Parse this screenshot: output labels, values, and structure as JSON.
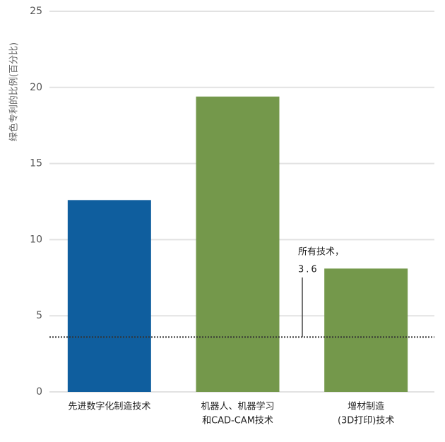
{
  "chart_data": {
    "type": "bar",
    "y_label": "绿色专利的比例(百分比)",
    "categories": [
      [
        "先进数字化制造技术"
      ],
      [
        "机器人、机器学习",
        "和CAD-CAM技术"
      ],
      [
        "增材制造",
        "(3D打印)技术"
      ]
    ],
    "values": [
      12.6,
      19.4,
      8.1
    ],
    "colors": [
      "#0f5e9e",
      "#74984b",
      "#74984b"
    ],
    "ylim": [
      0,
      25
    ],
    "yticks": [
      0,
      5,
      10,
      15,
      20,
      25
    ],
    "grid": true,
    "reference_line": {
      "label": "所有技术，",
      "value": 3.6
    }
  }
}
